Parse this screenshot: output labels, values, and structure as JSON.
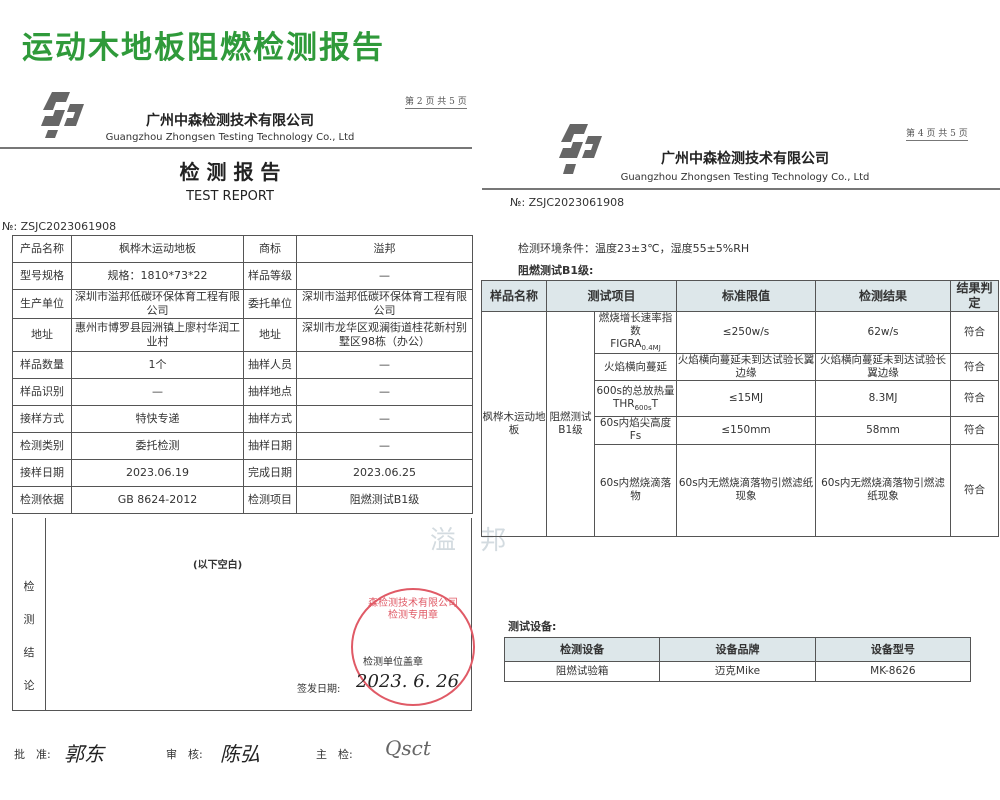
{
  "title": "运动木地板阻燃检测报告",
  "brand_color": "#2f9a3a",
  "left_page": {
    "page_indicator": "第 2 页 共 5 页",
    "company_cn": "广州中森检测技术有限公司",
    "company_en": "Guangzhou Zhongsen Testing Technology Co., Ltd",
    "doc_title_cn": "检 测 报 告",
    "doc_title_en": "TEST REPORT",
    "report_no": "№: ZSJC2023061908",
    "rows": [
      [
        "产品名称",
        "枫桦木运动地板",
        "商标",
        "溢邦"
      ],
      [
        "型号规格",
        "规格：1810*73*22",
        "样品等级",
        "—"
      ],
      [
        "生产单位",
        "深圳市溢邦低碳环保体育工程有限公司",
        "委托单位",
        "深圳市溢邦低碳环保体育工程有限公司"
      ],
      [
        "地址",
        "惠州市博罗县园洲镇上廖村华润工业村",
        "地址",
        "深圳市龙华区观澜街道桂花新村别墅区98栋（办公）"
      ],
      [
        "样品数量",
        "1个",
        "抽样人员",
        "—"
      ],
      [
        "样品识别",
        "—",
        "抽样地点",
        "—"
      ],
      [
        "接样方式",
        "特快专递",
        "抽样方式",
        "—"
      ],
      [
        "检测类别",
        "委托检测",
        "抽样日期",
        "—"
      ],
      [
        "接样日期",
        "2023.06.19",
        "完成日期",
        "2023.06.25"
      ],
      [
        "检测依据",
        "GB 8624-2012",
        "检测项目",
        "阻燃测试B1级"
      ]
    ],
    "conclusion_label": [
      "检",
      "测",
      "结",
      "论"
    ],
    "blank_note": "(以下空白)",
    "seal_label": "检测单位盖章",
    "issue_date_label": "签发日期:",
    "issue_date": "2023. 6. 26",
    "stamp_text": "森检测技术有限公司 检测专用章",
    "approve_label": "批　准:",
    "review_label": "审　核:",
    "inspect_label": "主　检:"
  },
  "watermark": "溢 邦",
  "right_page": {
    "page_indicator": "第 4 页 共 5 页",
    "company_cn": "广州中森检测技术有限公司",
    "company_en": "Guangzhou Zhongsen Testing Technology Co., Ltd",
    "report_no": "№: ZSJC2023061908",
    "env_conditions": "检测环境条件：温度23±3℃，湿度55±5%RH",
    "section_title": "阻燃测试B1级:",
    "headers": [
      "样品名称",
      "测试项目",
      "标准限值",
      "检测结果",
      "结果判定"
    ],
    "sample_name": "枫桦木运动地板",
    "test_group": "阻燃测试B1级",
    "rows": [
      {
        "item": "燃烧增长速率指数",
        "item_sym": "FIGRA",
        "item_sub": "0.4MJ",
        "limit": "≤250w/s",
        "result": "62w/s",
        "verdict": "符合"
      },
      {
        "item": "火焰横向蔓延",
        "limit": "火焰横向蔓延未到达试验长翼边缘",
        "result": "火焰横向蔓延未到达试验长翼边缘",
        "verdict": "符合"
      },
      {
        "item": "600s的总放热量",
        "item_sym": "THR",
        "item_sub": "600s",
        "item_tail": "T",
        "limit": "≤15MJ",
        "result": "8.3MJ",
        "verdict": "符合"
      },
      {
        "item": "60s内焰尖高度Fs",
        "limit": "≤150mm",
        "result": "58mm",
        "verdict": "符合"
      },
      {
        "item": "60s内燃烧滴落物",
        "limit": "60s内无燃烧滴落物引燃滤纸现象",
        "result": "60s内无燃烧滴落物引燃滤纸现象",
        "verdict": "符合"
      }
    ],
    "equipment_title": "测试设备:",
    "equipment_headers": [
      "检测设备",
      "设备品牌",
      "设备型号"
    ],
    "equipment_rows": [
      [
        "阻燃试验箱",
        "迈克Mike",
        "MK-8626"
      ]
    ]
  }
}
